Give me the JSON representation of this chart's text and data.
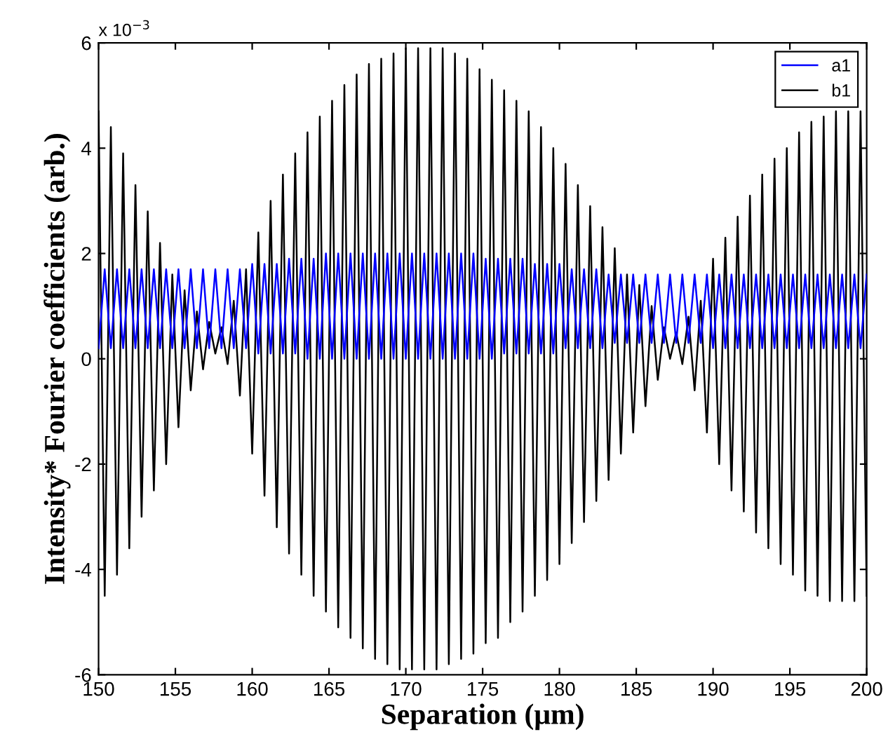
{
  "chart_data": {
    "type": "line",
    "xlabel": "Separation (μm)",
    "ylabel": "Intensity* Fourier coefficients (arb.)",
    "annotations": [
      "x 10$^{−3}$"
    ],
    "xlim": [
      150,
      200
    ],
    "xticks": [
      150,
      155,
      160,
      165,
      170,
      175,
      180,
      185,
      190,
      195,
      200
    ],
    "ylim": [
      -6,
      6
    ],
    "yticks": [
      -6,
      -4,
      -2,
      0,
      2,
      4,
      6
    ],
    "grid": false,
    "legend": "top right",
    "marker": "none",
    "line_style": "solid",
    "x": [
      150.0,
      150.4,
      150.8,
      151.2,
      151.6,
      152.0,
      152.4,
      152.8,
      153.2,
      153.6,
      154.0,
      154.4,
      154.8,
      155.2,
      155.6,
      156.0,
      156.4,
      156.8,
      157.2,
      157.6,
      158.0,
      158.4,
      158.8,
      159.2,
      159.6,
      160.0,
      160.4,
      160.8,
      161.2,
      161.6,
      162.0,
      162.4,
      162.8,
      163.2,
      163.6,
      164.0,
      164.4,
      164.8,
      165.2,
      165.6,
      166.0,
      166.4,
      166.8,
      167.2,
      167.6,
      168.0,
      168.4,
      168.8,
      169.2,
      169.6,
      170.0,
      170.4,
      170.8,
      171.2,
      171.6,
      172.0,
      172.4,
      172.8,
      173.2,
      173.6,
      174.0,
      174.4,
      174.8,
      175.2,
      175.6,
      176.0,
      176.4,
      176.8,
      177.2,
      177.6,
      178.0,
      178.4,
      178.8,
      179.2,
      179.6,
      180.0,
      180.4,
      180.8,
      181.2,
      181.6,
      182.0,
      182.4,
      182.8,
      183.2,
      183.6,
      184.0,
      184.4,
      184.8,
      185.2,
      185.6,
      186.0,
      186.4,
      186.8,
      187.2,
      187.6,
      188.0,
      188.4,
      188.8,
      189.2,
      189.6,
      190.0,
      190.4,
      190.8,
      191.2,
      191.6,
      192.0,
      192.4,
      192.8,
      193.2,
      193.6,
      194.0,
      194.4,
      194.8,
      195.2,
      195.6,
      196.0,
      196.4,
      196.8,
      197.2,
      197.6,
      198.0,
      198.4,
      198.8,
      199.2,
      199.6,
      200.0
    ],
    "series": [
      {
        "name": "a1",
        "color": "#0000ff",
        "values": [
          0.2,
          1.7,
          0.2,
          1.7,
          0.2,
          1.7,
          0.2,
          1.7,
          0.2,
          1.7,
          0.2,
          1.7,
          0.2,
          1.7,
          0.2,
          1.7,
          0.2,
          1.7,
          0.2,
          1.7,
          0.2,
          1.7,
          0.2,
          1.7,
          0.2,
          1.8,
          0.1,
          1.8,
          0.1,
          1.8,
          0.1,
          1.9,
          0.1,
          1.9,
          0.0,
          1.9,
          0.0,
          2.0,
          0.0,
          2.0,
          0.0,
          2.0,
          0.0,
          2.0,
          0.0,
          2.0,
          0.0,
          2.0,
          0.0,
          2.0,
          0.0,
          2.0,
          0.0,
          2.0,
          0.0,
          2.0,
          0.0,
          2.0,
          0.0,
          2.0,
          0.0,
          2.0,
          0.0,
          1.9,
          0.0,
          1.9,
          0.1,
          1.9,
          0.1,
          1.9,
          0.1,
          1.8,
          0.1,
          1.8,
          0.1,
          1.8,
          0.2,
          1.7,
          0.2,
          1.7,
          0.2,
          1.7,
          0.2,
          1.6,
          0.3,
          1.6,
          0.3,
          1.6,
          0.3,
          1.6,
          0.3,
          1.6,
          0.3,
          1.6,
          0.3,
          1.6,
          0.3,
          1.6,
          0.3,
          1.6,
          0.2,
          1.6,
          0.2,
          1.6,
          0.2,
          1.6,
          0.2,
          1.6,
          0.2,
          1.6,
          0.2,
          1.6,
          0.2,
          1.6,
          0.2,
          1.6,
          0.2,
          1.6,
          0.2,
          1.6,
          0.2,
          1.6,
          0.2,
          1.6,
          0.2,
          1.6
        ]
      },
      {
        "name": "b1",
        "color": "#000000",
        "values": [
          4.7,
          -4.5,
          4.4,
          -4.1,
          3.9,
          -3.6,
          3.3,
          -3.0,
          2.8,
          -2.5,
          2.2,
          -2.0,
          1.6,
          -1.3,
          1.3,
          -0.6,
          0.9,
          -0.2,
          0.7,
          0.1,
          0.6,
          -0.1,
          1.1,
          -0.7,
          1.7,
          -1.8,
          2.4,
          -2.6,
          3.0,
          -3.2,
          3.5,
          -3.7,
          3.9,
          -4.1,
          4.3,
          -4.5,
          4.6,
          -4.8,
          4.9,
          -5.1,
          5.2,
          -5.3,
          5.4,
          -5.5,
          5.6,
          -5.7,
          5.7,
          -5.8,
          5.8,
          -5.9,
          5.9,
          -5.9,
          5.9,
          -5.9,
          5.9,
          -5.9,
          5.9,
          -5.8,
          5.8,
          -5.7,
          5.7,
          -5.6,
          5.5,
          -5.4,
          5.3,
          -5.3,
          5.1,
          -5.0,
          4.9,
          -4.8,
          4.7,
          -4.5,
          4.4,
          -4.2,
          4.0,
          -3.9,
          3.7,
          -3.5,
          3.3,
          -3.1,
          2.9,
          -2.7,
          2.5,
          -2.3,
          2.1,
          -1.8,
          1.6,
          -1.4,
          1.4,
          -0.9,
          1.0,
          -0.4,
          0.6,
          0.0,
          0.5,
          -0.1,
          0.8,
          -0.6,
          1.1,
          -1.4,
          1.9,
          -2.0,
          2.3,
          -2.5,
          2.7,
          -2.9,
          3.1,
          -3.3,
          3.5,
          -3.6,
          3.8,
          -3.9,
          4.0,
          -4.1,
          4.3,
          -4.4,
          4.5,
          -4.5,
          4.6,
          -4.6,
          4.7,
          -4.6,
          4.7,
          -4.6,
          4.7,
          -4.5
        ]
      }
    ]
  }
}
